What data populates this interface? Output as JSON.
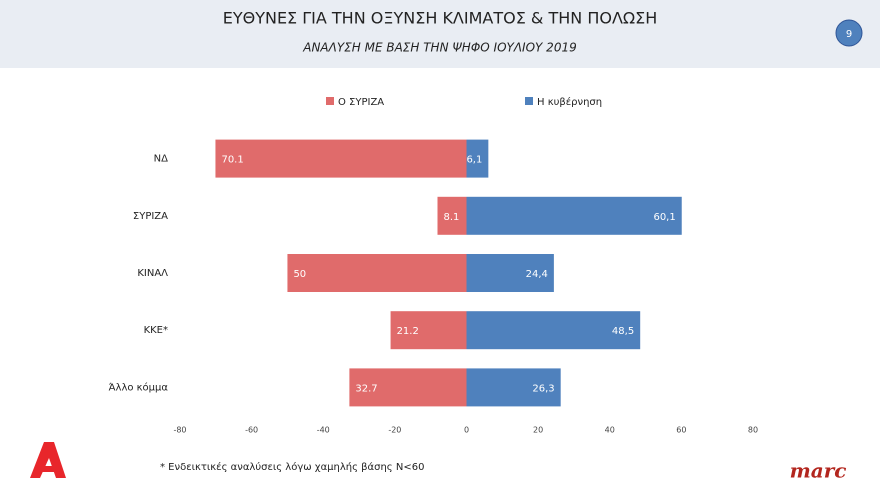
{
  "chart_data": {
    "type": "bar",
    "orientation": "horizontal",
    "title": "ΕΥΘΥΝΕΣ ΓΙΑ ΤΗΝ ΟΞΥΝΣΗ ΚΛΙΜΑΤΟΣ & ΤΗΝ ΠΟΛΩΣΗ",
    "subtitle": "ΑΝΑΛΥΣΗ ΜΕ ΒΑΣΗ ΤΗΝ ΨΗΦΟ ΙΟΥΛΙΟΥ 2019",
    "categories": [
      "ΝΔ",
      "ΣΥΡΙΖΑ",
      "ΚΙΝΑΛ",
      "ΚΚΕ*",
      "Άλλο κόμμα"
    ],
    "series": [
      {
        "name": "Ο ΣΥΡΙΖΑ",
        "color": "#e06b6b",
        "values": [
          -70.1,
          -8.1,
          -50,
          -21.2,
          -32.7
        ],
        "value_labels": [
          "70.1",
          "8.1",
          "50",
          "21.2",
          "32.7"
        ]
      },
      {
        "name": "Η κυβέρνηση",
        "color": "#4f81bd",
        "values": [
          6.1,
          60.1,
          24.4,
          48.5,
          26.3
        ],
        "value_labels": [
          "6,1",
          "60,1",
          "24,4",
          "48,5",
          "26,3"
        ]
      }
    ],
    "xlim": [
      -80,
      80
    ],
    "xticks": [
      -80,
      -60,
      -40,
      -20,
      0,
      20,
      40,
      60,
      80
    ],
    "grid": false,
    "legend": "top"
  },
  "page": {
    "number": "9",
    "footnote": "* Ενδεικτικές αναλύσεις λόγω χαμηλής βάσης Ν<60",
    "logo": "marc"
  }
}
